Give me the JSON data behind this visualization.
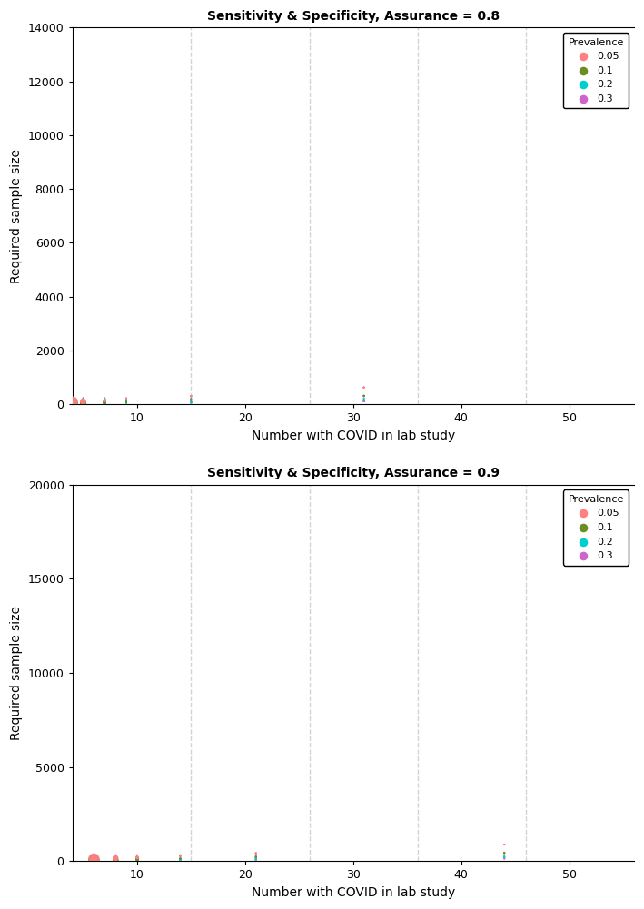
{
  "title1": "Sensitivity & Specificity, Assurance = 0.8",
  "title2": "Sensitivity & Specificity, Assurance = 0.9",
  "xlabel": "Number with COVID in lab study",
  "ylabel": "Required sample size",
  "ylim1": [
    0,
    14000
  ],
  "ylim2": [
    0,
    20000
  ],
  "yticks1": [
    0,
    2000,
    4000,
    6000,
    8000,
    10000,
    12000,
    14000
  ],
  "yticks2": [
    0,
    5000,
    10000,
    15000,
    20000
  ],
  "xlim": [
    4,
    56
  ],
  "xticks": [
    10,
    20,
    30,
    40,
    50
  ],
  "vlines": [
    15,
    26,
    36,
    46
  ],
  "colors": {
    "0.05": "#FF8080",
    "0.1": "#6B8E23",
    "0.2": "#00CED1",
    "0.3": "#CC66CC"
  },
  "prevalence_labels": [
    "0.05",
    "0.1",
    "0.2",
    "0.3"
  ],
  "background_color": "#FFFFFF",
  "legend_title": "Prevalence"
}
